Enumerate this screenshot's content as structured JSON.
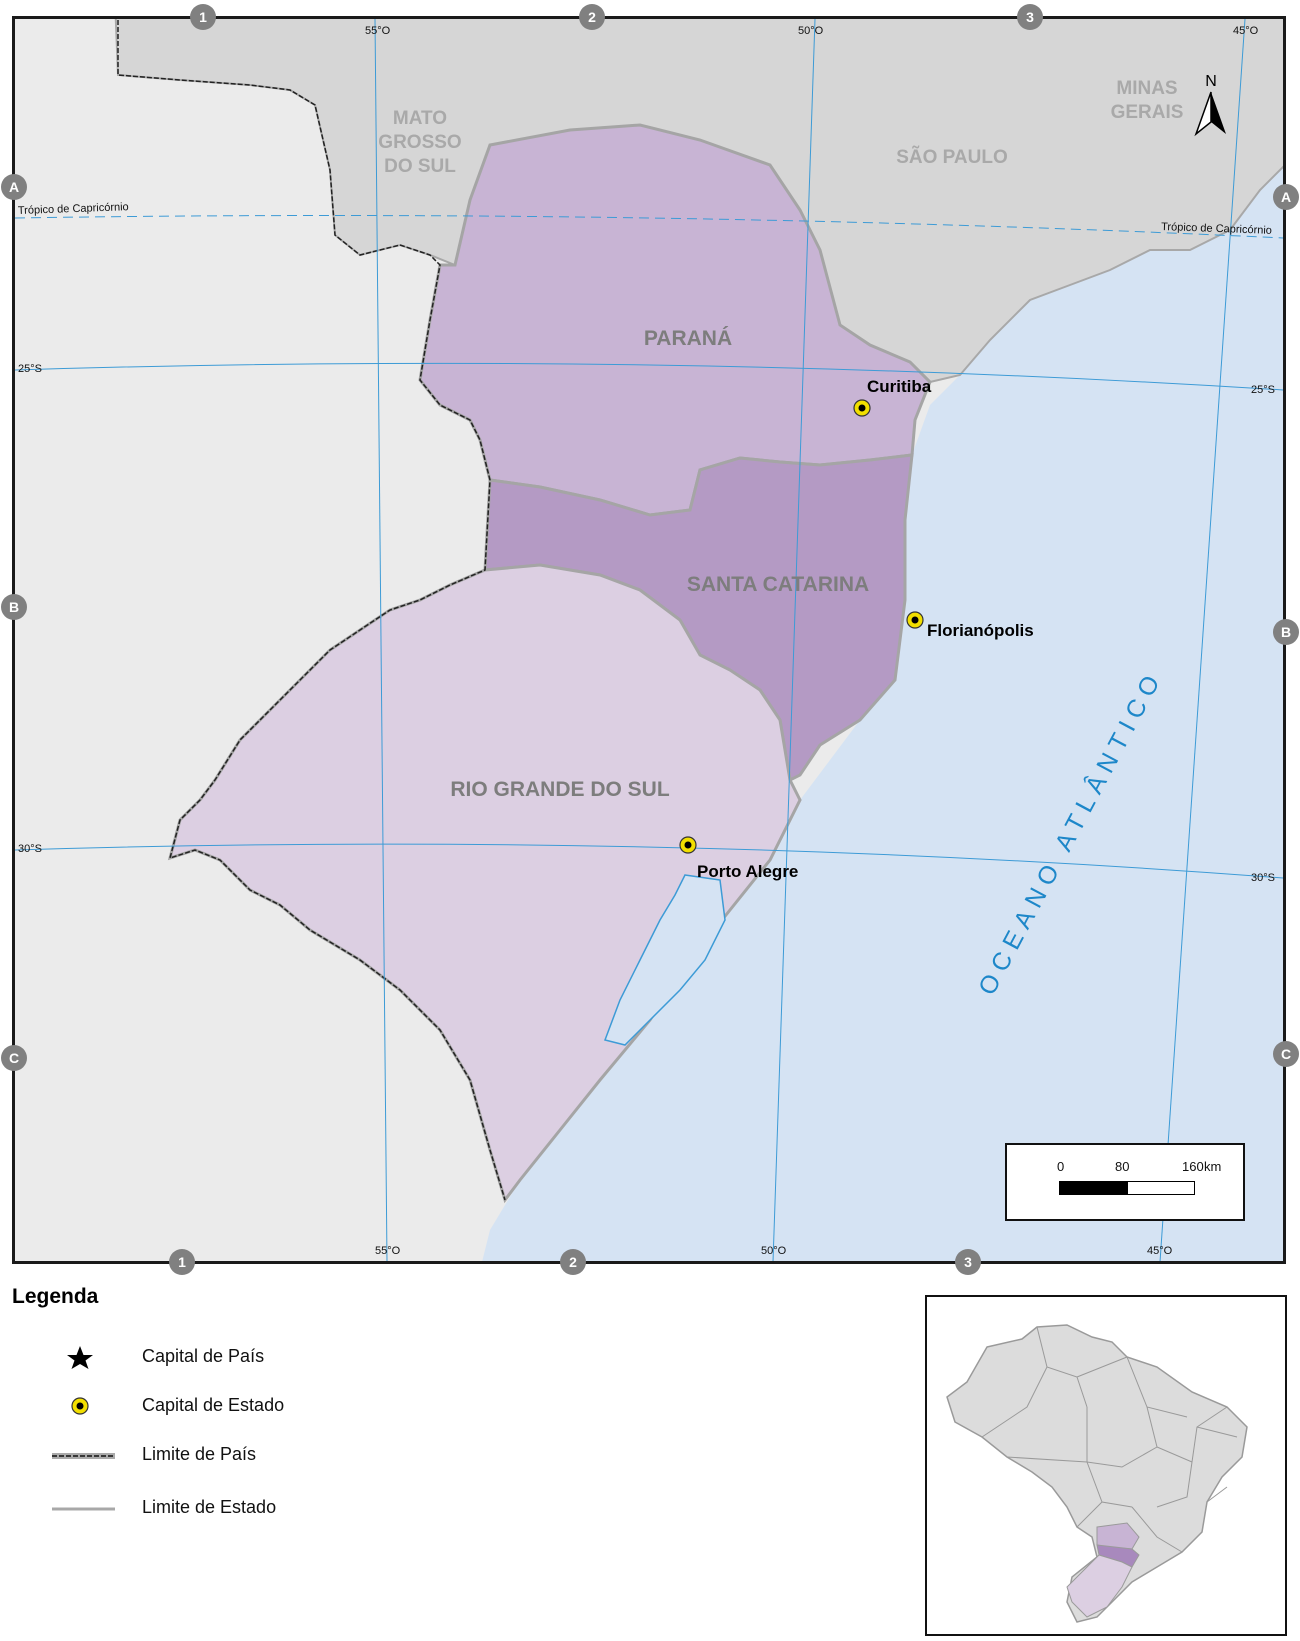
{
  "map": {
    "states": {
      "parana": "PARANÁ",
      "santa_catarina": "SANTA CATARINA",
      "rio_grande_do_sul": "RIO GRANDE DO SUL"
    },
    "neighbors": {
      "ms_line1": "MATO",
      "ms_line2": "GROSSO",
      "ms_line3": "DO SUL",
      "sao_paulo": "SÃO PAULO",
      "mg_line1": "MINAS",
      "mg_line2": "GERAIS"
    },
    "capitals": {
      "curitiba": "Curitiba",
      "florianopolis": "Florianópolis",
      "porto_alegre": "Porto Alegre"
    },
    "ocean_label": "OCEANO ATLÂNTICO",
    "tropic_label": "Trópico de Capricórnio",
    "north_label": "N",
    "lon_labels": [
      "55°O",
      "50°O",
      "45°O"
    ],
    "lat_labels": [
      "25°S",
      "30°S"
    ],
    "grid_columns": [
      "1",
      "2",
      "3"
    ],
    "grid_rows": [
      "A",
      "B",
      "C"
    ]
  },
  "scale": {
    "labels": [
      "0",
      "80",
      "160"
    ],
    "unit": "km"
  },
  "legend": {
    "title": "Legenda",
    "items": [
      {
        "label": "Capital de País",
        "symbol": "star-icon"
      },
      {
        "label": "Capital de Estado",
        "symbol": "state-capital-icon"
      },
      {
        "label": "Limite de País",
        "symbol": "country-border-line"
      },
      {
        "label": "Limite de Estado",
        "symbol": "state-border-line"
      }
    ]
  },
  "colors": {
    "ocean": "#d5e3f3",
    "land_other": "#ebebeb",
    "neighbor_states": "#d6d6d6",
    "parana": "#c8b4d4",
    "santa_catarina": "#b49ac4",
    "rio_grande_do_sul": "#dccfe2",
    "grid_lines": "#3d9bd6",
    "capital_marker": "#f2df00"
  }
}
